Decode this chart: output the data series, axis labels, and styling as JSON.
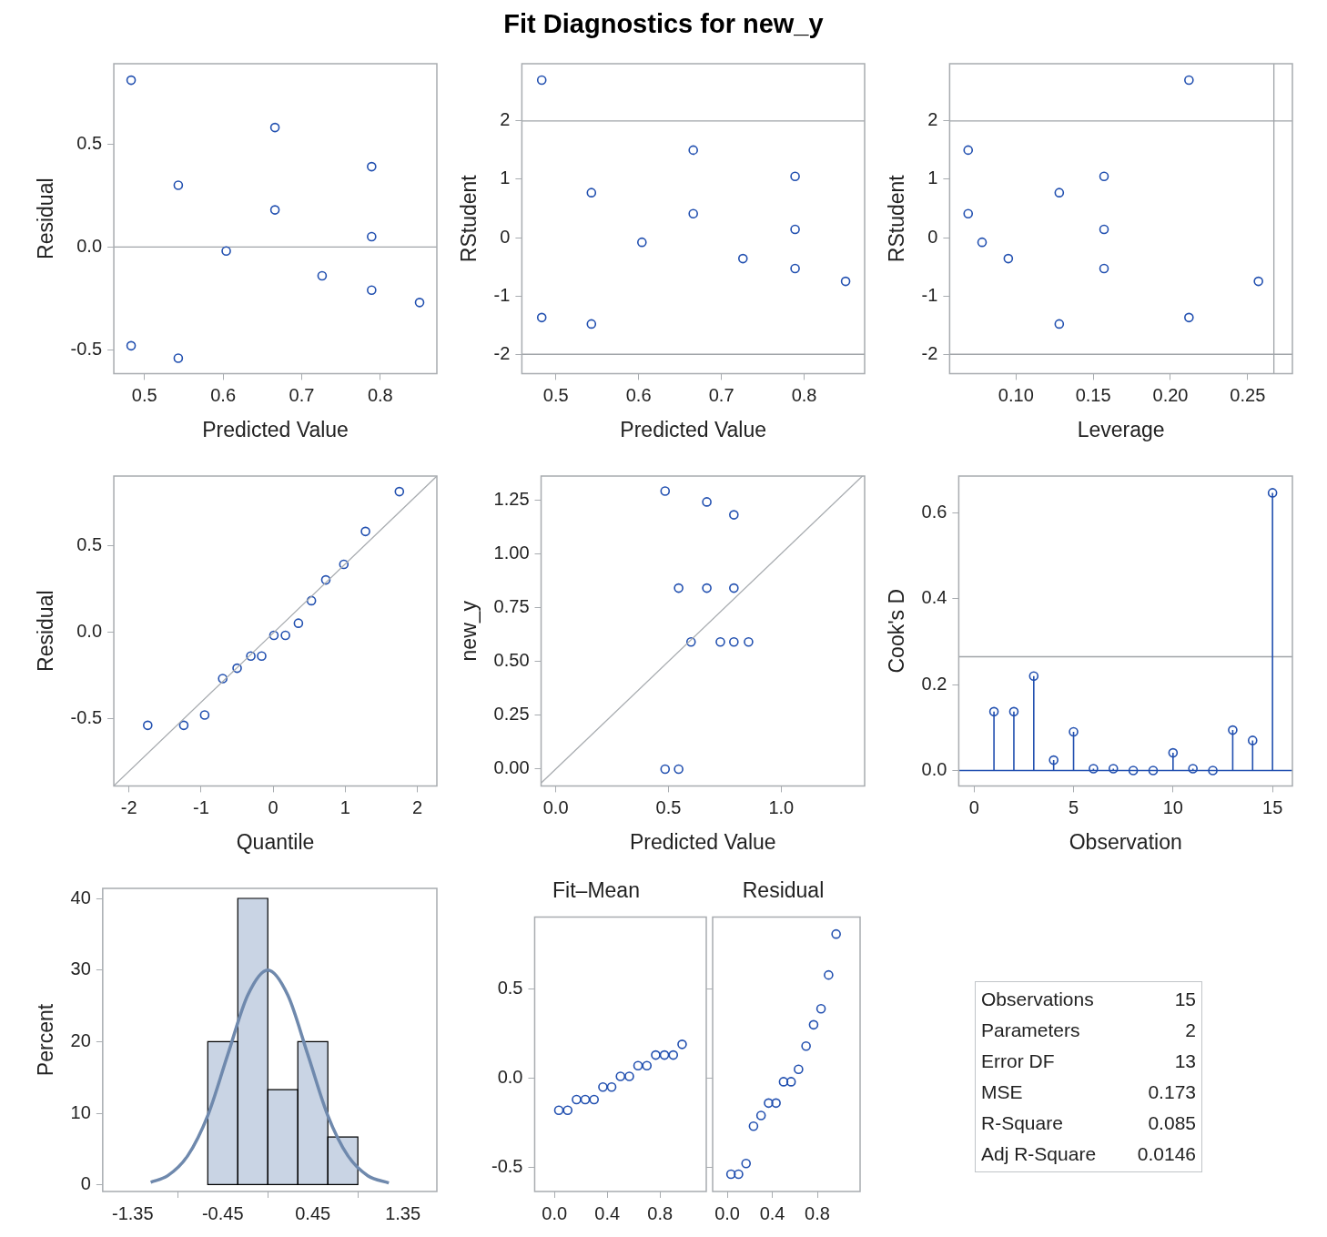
{
  "chart_data": [
    {
      "type": "scatter",
      "xlabel": "Predicted Value",
      "ylabel": "Residual",
      "marker": "circle",
      "color": "#2250b0",
      "x": [
        0.483,
        0.483,
        0.543,
        0.543,
        0.604,
        0.666,
        0.666,
        0.726,
        0.789,
        0.789,
        0.789,
        0.85
      ],
      "values": [
        0.81,
        -0.48,
        0.3,
        -0.54,
        -0.02,
        0.58,
        0.18,
        -0.14,
        0.39,
        0.05,
        -0.21,
        -0.27
      ],
      "xlim": [
        0.461,
        0.872
      ],
      "xticks": [
        0.5,
        0.6,
        0.7,
        0.8
      ],
      "ylim": [
        -0.615,
        0.89
      ],
      "yticks": [
        -0.5,
        {
          "value": 0,
          "label": "0.0"
        },
        0.5
      ],
      "ref_lines": [
        {
          "axis": "y",
          "value": 0,
          "color": "#a0a4a8"
        }
      ]
    },
    {
      "type": "scatter",
      "xlabel": "Predicted Value",
      "ylabel": "RStudent",
      "marker": "circle",
      "color": "#2250b0",
      "x": [
        0.483,
        0.483,
        0.543,
        0.543,
        0.604,
        0.666,
        0.666,
        0.726,
        0.789,
        0.789,
        0.789,
        0.85
      ],
      "values": [
        2.7,
        -1.37,
        0.77,
        -1.48,
        -0.08,
        1.5,
        0.41,
        -0.36,
        1.05,
        0.14,
        -0.53,
        -0.75
      ],
      "xlim": [
        0.459,
        0.873
      ],
      "xticks": [
        0.5,
        0.6,
        0.7,
        0.8
      ],
      "ylim": [
        -2.33,
        2.98
      ],
      "yticks": [
        -2,
        -1,
        0,
        1,
        2
      ],
      "ref_lines": [
        {
          "axis": "y",
          "value": 2,
          "color": "#a0a4a8"
        },
        {
          "axis": "y",
          "value": -2,
          "color": "#a0a4a8"
        }
      ]
    },
    {
      "type": "scatter",
      "xlabel": "Leverage",
      "ylabel": "RStudent",
      "marker": "circle",
      "color": "#2250b0",
      "x": [
        0.212,
        0.212,
        0.128,
        0.128,
        0.078,
        0.069,
        0.069,
        0.095,
        0.157,
        0.157,
        0.157,
        0.257
      ],
      "values": [
        2.7,
        -1.37,
        0.77,
        -1.48,
        -0.08,
        1.5,
        0.41,
        -0.36,
        1.05,
        0.14,
        -0.53,
        -0.75
      ],
      "xlim": [
        0.057,
        0.279
      ],
      "xticks": [
        {
          "value": 0.1,
          "label": "0.10"
        },
        {
          "value": 0.15,
          "label": "0.15"
        },
        {
          "value": 0.2,
          "label": "0.20"
        },
        {
          "value": 0.25,
          "label": "0.25"
        }
      ],
      "ylim": [
        -2.33,
        2.98
      ],
      "yticks": [
        -2,
        -1,
        0,
        1,
        2
      ],
      "ref_lines": [
        {
          "axis": "y",
          "value": 2,
          "color": "#a0a4a8"
        },
        {
          "axis": "y",
          "value": -2,
          "color": "#a0a4a8"
        },
        {
          "axis": "x",
          "value": 0.267,
          "color": "#a0a4a8"
        }
      ]
    },
    {
      "type": "scatter",
      "xlabel": "Quantile",
      "ylabel": "Residual",
      "marker": "circle",
      "series": [
        {
          "color": "#2250b0",
          "x": [
            -1.74,
            -1.24,
            -0.95,
            -0.7,
            -0.5,
            -0.31,
            -0.16,
            0.01,
            0.17,
            0.35,
            0.53,
            0.73,
            0.98,
            1.28,
            1.75
          ],
          "values": [
            -0.54,
            -0.54,
            -0.48,
            -0.27,
            -0.21,
            -0.14,
            -0.14,
            -0.02,
            -0.02,
            0.05,
            0.18,
            0.3,
            0.39,
            0.58,
            0.81
          ]
        },
        {
          "type": "line",
          "marker": "none",
          "color": "#a8acb0",
          "x": [
            -2.21,
            2.27
          ],
          "values": [
            -0.89,
            0.9
          ]
        }
      ],
      "xlim": [
        -2.21,
        2.27
      ],
      "xticks": [
        -2,
        -1,
        0,
        1,
        2
      ],
      "ylim": [
        -0.89,
        0.9
      ],
      "yticks": [
        -0.5,
        {
          "value": 0,
          "label": "0.0"
        },
        0.5
      ]
    },
    {
      "type": "scatter",
      "xlabel": "Predicted Value",
      "ylabel": "new_y",
      "marker": "circle",
      "series": [
        {
          "color": "#2250b0",
          "x": [
            0.485,
            0.545,
            0.6,
            0.73,
            0.79,
            0.855,
            0.545,
            0.67,
            0.79,
            0.485,
            0.67,
            0.79
          ],
          "values": [
            0,
            0,
            0.59,
            0.59,
            0.59,
            0.59,
            0.84,
            0.84,
            0.84,
            1.29,
            1.24,
            1.18
          ]
        },
        {
          "type": "line",
          "marker": "none",
          "color": "#a8acb0",
          "x": [
            -0.065,
            1.36
          ],
          "values": [
            -0.065,
            1.36
          ]
        }
      ],
      "xlim": [
        -0.065,
        1.37
      ],
      "xticks": [
        {
          "value": 0,
          "label": "0.0"
        },
        0.5,
        {
          "value": 1,
          "label": "1.0"
        }
      ],
      "ylim": [
        -0.078,
        1.36
      ],
      "yticks": [
        {
          "value": 0,
          "label": "0.00"
        },
        0.25,
        {
          "value": 0.5,
          "label": "0.50"
        },
        0.75,
        {
          "value": 1,
          "label": "1.00"
        },
        1.25
      ]
    },
    {
      "type": "lollipop",
      "xlabel": "Observation",
      "ylabel": "Cook's D",
      "marker": "circle",
      "color": "#2250b0",
      "x": [
        1,
        2,
        3,
        4,
        5,
        6,
        7,
        8,
        9,
        10,
        11,
        12,
        13,
        14,
        15
      ],
      "values": [
        0.137,
        0.137,
        0.22,
        0.024,
        0.09,
        0.004,
        0.004,
        0,
        0,
        0.041,
        0.004,
        0,
        0.094,
        0.07,
        0.647
      ],
      "xlim": [
        -0.77,
        16
      ],
      "xticks": [
        0,
        5,
        10,
        15
      ],
      "ylim": [
        -0.036,
        0.686
      ],
      "yticks": [
        {
          "value": 0,
          "label": "0.0"
        },
        0.2,
        0.4,
        0.6
      ],
      "ref_lines": [
        {
          "axis": "y",
          "value": 0.265,
          "color": "#a0a4a8"
        }
      ]
    },
    {
      "type": "histogram",
      "ylabel": "Percent",
      "color": "#c9d4e4",
      "bins": [
        -0.6,
        -0.3,
        0,
        0.3,
        0.6,
        0.9
      ],
      "values": [
        20,
        40,
        13.3,
        20,
        6.7
      ],
      "series": [
        {
          "type": "line",
          "color": "#6f89ad",
          "x": [
            -1.17,
            -1.0,
            -0.8,
            -0.6,
            -0.4,
            -0.2,
            0,
            0.2,
            0.4,
            0.6,
            0.8,
            1.0,
            1.21
          ],
          "values": [
            0.4,
            1.3,
            4.1,
            9.7,
            18.2,
            26.5,
            30,
            26.5,
            18.2,
            9.7,
            4.1,
            1.3,
            0.3
          ]
        }
      ],
      "xlim": [
        -1.65,
        1.69
      ],
      "xticks": [
        -1.35,
        -0.45,
        0.45,
        1.35
      ],
      "ylim": [
        -0.9,
        41.4
      ],
      "yticks": [
        0,
        10,
        20,
        30,
        40
      ]
    },
    {
      "type": "scatter",
      "title": "Fit–Mean",
      "marker": "circle",
      "color": "#2250b0",
      "x": [
        0.033,
        0.1,
        0.167,
        0.233,
        0.3,
        0.367,
        0.433,
        0.5,
        0.567,
        0.633,
        0.7,
        0.767,
        0.833,
        0.9,
        0.967
      ],
      "values": [
        -0.18,
        -0.18,
        -0.12,
        -0.12,
        -0.12,
        -0.05,
        -0.05,
        0.01,
        0.01,
        0.07,
        0.07,
        0.13,
        0.13,
        0.13,
        0.19
      ],
      "xlim": [
        -0.15,
        1.15
      ],
      "xticks": [
        {
          "value": 0,
          "label": "0.0"
        },
        0.4,
        0.8
      ],
      "ylim": [
        -0.637,
        0.905
      ],
      "yticks": [
        -0.5,
        {
          "value": 0,
          "label": "0.0"
        },
        0.5
      ]
    },
    {
      "type": "scatter",
      "title": "Residual",
      "marker": "circle",
      "color": "#2250b0",
      "tick_labels": "x",
      "x": [
        0.033,
        0.1,
        0.167,
        0.233,
        0.3,
        0.367,
        0.433,
        0.5,
        0.567,
        0.633,
        0.7,
        0.767,
        0.833,
        0.9,
        0.967
      ],
      "values": [
        -0.54,
        -0.54,
        -0.48,
        -0.27,
        -0.21,
        -0.14,
        -0.14,
        -0.02,
        -0.02,
        0.05,
        0.18,
        0.3,
        0.39,
        0.58,
        0.81
      ],
      "xlim": [
        -0.13,
        1.18
      ],
      "xticks": [
        {
          "value": 0,
          "label": "0.0"
        },
        0.4,
        0.8
      ],
      "ylim": [
        -0.637,
        0.905
      ],
      "yticks": [
        -0.5,
        0,
        0.5
      ]
    },
    {
      "type": "other",
      "title": "Fit Diagnostics for new_y",
      "annotations": [
        "Observations",
        "15",
        "Parameters",
        "2",
        "Error DF",
        "13",
        "MSE",
        "0.173",
        "R-Square",
        "0.085",
        "Adj R-Square",
        "0.0146"
      ]
    }
  ]
}
